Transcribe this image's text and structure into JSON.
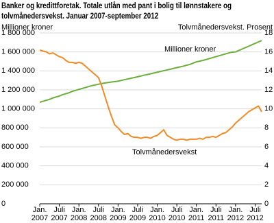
{
  "chart_data": {
    "type": "line",
    "title": "Banker og kredittforetak. Totale utlån med pant i bolig til lønnstakere og tolvmånedersvekst. Januar 2007-september 2012",
    "ylabel": "Millioner kroner",
    "y2label": "Tolvmånedersvekst. Prosent",
    "categories": [
      "Jan. 2007",
      null,
      null,
      null,
      null,
      null,
      "Juli 2007",
      null,
      null,
      null,
      null,
      null,
      "Jan. 2008",
      null,
      null,
      null,
      null,
      null,
      "Juli 2008",
      null,
      null,
      null,
      null,
      null,
      "Jan. 2009",
      null,
      null,
      null,
      null,
      null,
      "Juli 2009",
      null,
      null,
      null,
      null,
      null,
      "Jan. 2010",
      null,
      null,
      null,
      null,
      null,
      "Juli 2010",
      null,
      null,
      null,
      null,
      null,
      "Jan. 2011",
      null,
      null,
      null,
      null,
      null,
      "Juli 2011",
      null,
      null,
      null,
      null,
      null,
      "Jan. 2012",
      null,
      null,
      null,
      null,
      null,
      "Juli 2012",
      null,
      null
    ],
    "series": [
      {
        "name": "Millioner kroner",
        "color": "#6aaf3d",
        "axis": "y",
        "values": [
          1070000,
          1080000,
          1090000,
          1100000,
          1115000,
          1125000,
          1135000,
          1150000,
          1160000,
          1170000,
          1185000,
          1195000,
          1205000,
          1215000,
          1225000,
          1235000,
          1245000,
          1252000,
          1260000,
          1267000,
          1273000,
          1278000,
          1283000,
          1287000,
          1292000,
          1300000,
          1308000,
          1315000,
          1323000,
          1330000,
          1338000,
          1346000,
          1355000,
          1362000,
          1370000,
          1378000,
          1386000,
          1394000,
          1402000,
          1410000,
          1418000,
          1426000,
          1434000,
          1442000,
          1450000,
          1460000,
          1468000,
          1482000,
          1495000,
          1503000,
          1511000,
          1520000,
          1530000,
          1540000,
          1550000,
          1560000,
          1570000,
          1580000,
          1590000,
          1598000,
          1600000,
          1615000,
          1630000,
          1645000,
          1660000,
          1675000,
          1690000,
          1705000,
          1720000
        ]
      },
      {
        "name": "Tolvmånedersvekst",
        "color": "#f08a24",
        "axis": "y2",
        "values": [
          16.2,
          16.1,
          16.0,
          15.8,
          15.9,
          15.7,
          15.5,
          15.4,
          15.1,
          14.9,
          14.9,
          14.8,
          14.9,
          14.8,
          14.5,
          14.2,
          13.9,
          13.6,
          13.3,
          12.4,
          11.3,
          10.2,
          9.2,
          8.3,
          8.0,
          7.6,
          7.3,
          7.4,
          7.1,
          7.0,
          7.0,
          6.9,
          7.0,
          7.0,
          6.9,
          7.1,
          7.2,
          7.5,
          7.8,
          7.2,
          7.0,
          6.8,
          6.7,
          6.8,
          6.8,
          6.7,
          6.8,
          6.8,
          6.8,
          6.9,
          6.8,
          7.0,
          7.0,
          7.1,
          7.0,
          7.2,
          7.4,
          7.5,
          7.8,
          8.1,
          8.5,
          8.8,
          9.1,
          9.4,
          9.7,
          9.9,
          10.1,
          10.3,
          9.7
        ]
      }
    ],
    "ylim": [
      0,
      1800000
    ],
    "yticks": [
      0,
      {
        "value": 200000,
        "label": "200 000"
      },
      {
        "value": 400000,
        "label": "400 000"
      },
      {
        "value": 600000,
        "label": "600 000"
      },
      {
        "value": 800000,
        "label": "800 000"
      },
      {
        "value": 1000000,
        "label": "1 000 000"
      },
      {
        "value": 1200000,
        "label": "1 200 000"
      },
      {
        "value": 1400000,
        "label": "1 400 000"
      },
      {
        "value": 1600000,
        "label": "1 600 000"
      },
      {
        "value": 1800000,
        "label": "1 800 000"
      }
    ],
    "y2lim": [
      0,
      18
    ],
    "y2ticks": [
      0,
      2,
      4,
      6,
      8,
      10,
      12,
      14,
      16,
      18
    ],
    "grid": true
  }
}
